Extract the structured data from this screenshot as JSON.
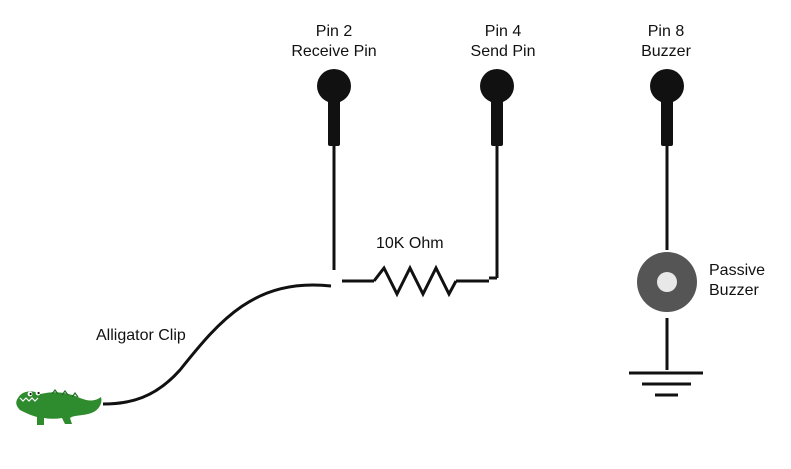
{
  "pins": [
    {
      "name": "Pin 2",
      "role": "Receive Pin"
    },
    {
      "name": "Pin 4",
      "role": "Send Pin"
    },
    {
      "name": "Pin 8",
      "role": "Buzzer"
    }
  ],
  "resistor": {
    "label": "10K Ohm"
  },
  "buzzer": {
    "line1": "Passive",
    "line2": "Buzzer"
  },
  "clip": {
    "label": "Alligator Clip"
  },
  "colors": {
    "wire": "#111111",
    "buzzer_ring": "#555555",
    "buzzer_center": "#e8e8e8",
    "alligator": "#2e8b2e"
  }
}
